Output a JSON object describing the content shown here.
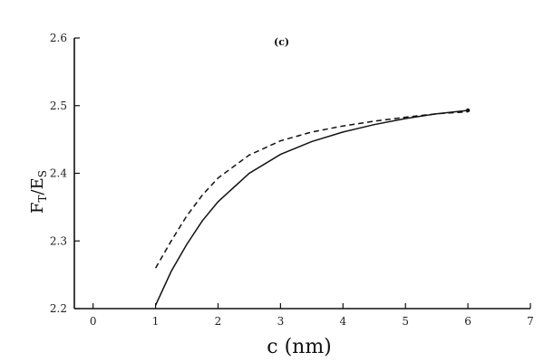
{
  "chart_data": {
    "type": "line",
    "panel_label": "(c)",
    "xlabel": {
      "main": "c",
      "unit": "(nm)"
    },
    "ylabel": {
      "base1": "F",
      "sub1": "T",
      "slash": "/E",
      "sub2": "S"
    },
    "xlim": [
      -0.3,
      7
    ],
    "ylim": [
      2.2,
      2.6
    ],
    "x_ticks": [
      0,
      1,
      2,
      3,
      4,
      5,
      6,
      7
    ],
    "x_tick_labels": [
      "0",
      "1",
      "2",
      "3",
      "4",
      "5",
      "6",
      "7"
    ],
    "y_ticks": [
      2.2,
      2.3,
      2.4,
      2.5,
      2.6
    ],
    "y_tick_labels": [
      "2.2",
      "2.3",
      "2.4",
      "2.5",
      "2.6"
    ],
    "grid": false,
    "series": [
      {
        "style": "solid",
        "x": [
          1.0,
          1.25,
          1.5,
          1.75,
          2.0,
          2.5,
          3.0,
          3.5,
          4.0,
          4.5,
          5.0,
          5.5,
          6.0
        ],
        "y": [
          2.205,
          2.255,
          2.295,
          2.33,
          2.358,
          2.4,
          2.428,
          2.447,
          2.461,
          2.472,
          2.481,
          2.488,
          2.493
        ]
      },
      {
        "style": "dashed",
        "x": [
          1.0,
          1.25,
          1.5,
          1.75,
          2.0,
          2.5,
          3.0,
          3.5,
          4.0,
          4.5,
          5.0,
          5.5,
          6.0
        ],
        "y": [
          2.26,
          2.3,
          2.337,
          2.368,
          2.393,
          2.427,
          2.448,
          2.461,
          2.47,
          2.477,
          2.483,
          2.488,
          2.491
        ]
      }
    ]
  }
}
